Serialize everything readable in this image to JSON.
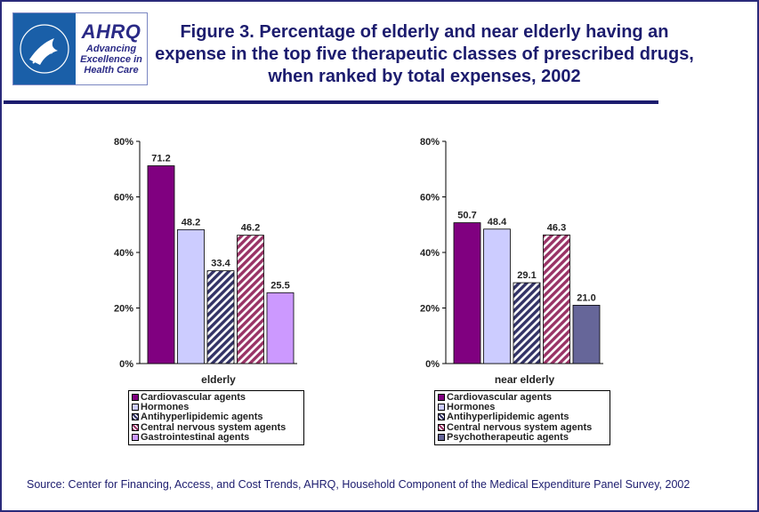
{
  "logo": {
    "brand": "AHRQ",
    "tagline": [
      "Advancing",
      "Excellence in",
      "Health Care"
    ]
  },
  "title": "Figure 3. Percentage of elderly and near elderly having an expense in the top five therapeutic classes of prescribed drugs, when ranked by total expenses, 2002",
  "source": "Source: Center for Financing, Access, and Cost Trends, AHRQ, Household Component of the Medical Expenditure Panel Survey, 2002",
  "colors": {
    "accent": "#1c1c6e",
    "cardiovascular": "#800080",
    "hormones": "#ccccff",
    "antihyperlipidemic": "#333366",
    "cns": "#993366",
    "gastrointestinal": "#cc99ff",
    "psychotherapeutic": "#666699"
  },
  "chart_data": [
    {
      "type": "bar",
      "xlabel": "elderly",
      "ylim": [
        0,
        80
      ],
      "yticks": [
        "0%",
        "20%",
        "40%",
        "60%",
        "80%"
      ],
      "grid": false,
      "legend_position": "bottom",
      "series": [
        {
          "name": "Cardiovascular agents",
          "value": 71.2,
          "label": "71.2",
          "fill": "#800080",
          "pattern": "solid"
        },
        {
          "name": "Hormones",
          "value": 48.2,
          "label": "48.2",
          "fill": "#ccccff",
          "pattern": "solid"
        },
        {
          "name": "Antihyperlipidemic agents",
          "value": 33.4,
          "label": "33.4",
          "fill": "#333366",
          "pattern": "diagonal"
        },
        {
          "name": "Central nervous system agents",
          "value": 46.2,
          "label": "46.2",
          "fill": "#993366",
          "pattern": "diagonal"
        },
        {
          "name": "Gastrointestinal agents",
          "value": 25.5,
          "label": "25.5",
          "fill": "#cc99ff",
          "pattern": "solid"
        }
      ]
    },
    {
      "type": "bar",
      "xlabel": "near elderly",
      "ylim": [
        0,
        80
      ],
      "yticks": [
        "0%",
        "20%",
        "40%",
        "60%",
        "80%"
      ],
      "grid": false,
      "legend_position": "bottom",
      "series": [
        {
          "name": "Cardiovascular agents",
          "value": 50.7,
          "label": "50.7",
          "fill": "#800080",
          "pattern": "solid"
        },
        {
          "name": "Hormones",
          "value": 48.4,
          "label": "48.4",
          "fill": "#ccccff",
          "pattern": "solid"
        },
        {
          "name": "Antihyperlipidemic agents",
          "value": 29.1,
          "label": "29.1",
          "fill": "#333366",
          "pattern": "diagonal"
        },
        {
          "name": "Central nervous system agents",
          "value": 46.3,
          "label": "46.3",
          "fill": "#993366",
          "pattern": "diagonal"
        },
        {
          "name": "Psychotherapeutic agents",
          "value": 21.0,
          "label": "21.0",
          "fill": "#666699",
          "pattern": "solid"
        }
      ]
    }
  ]
}
